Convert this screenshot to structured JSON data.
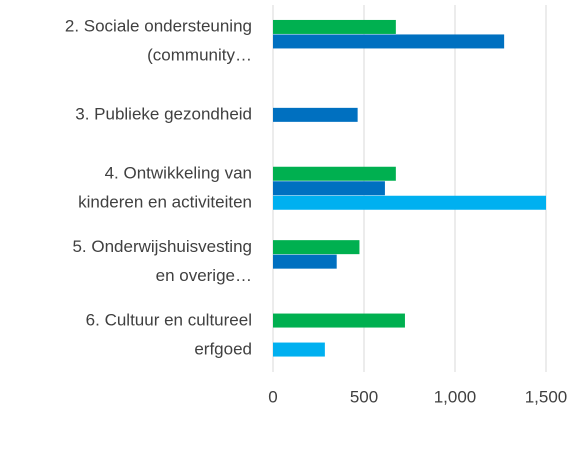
{
  "chart_data": {
    "type": "hbar",
    "categories": [
      [
        "2. Sociale ondersteuning",
        "(community…"
      ],
      [
        "3. Publieke gezondheid"
      ],
      [
        "4. Ontwikkeling van",
        "kinderen en activiteiten"
      ],
      [
        "5. Onderwijshuisvesting",
        "en overige…"
      ],
      [
        "6. Cultuur en cultureel",
        "erfgoed"
      ]
    ],
    "series": [
      {
        "color": "#00b050",
        "values": [
          675,
          null,
          675,
          475,
          725
        ]
      },
      {
        "color": "#0070c0",
        "values": [
          1270,
          465,
          615,
          350,
          null
        ]
      },
      {
        "color": "#00b0f0",
        "values": [
          null,
          null,
          1500,
          null,
          285
        ]
      }
    ],
    "xlim": [
      0,
      1500
    ],
    "xticks": [
      0,
      500,
      {
        "value": 1000,
        "label": "1,000"
      },
      {
        "value": 1500,
        "label": "1,500"
      }
    ],
    "grid": true
  }
}
